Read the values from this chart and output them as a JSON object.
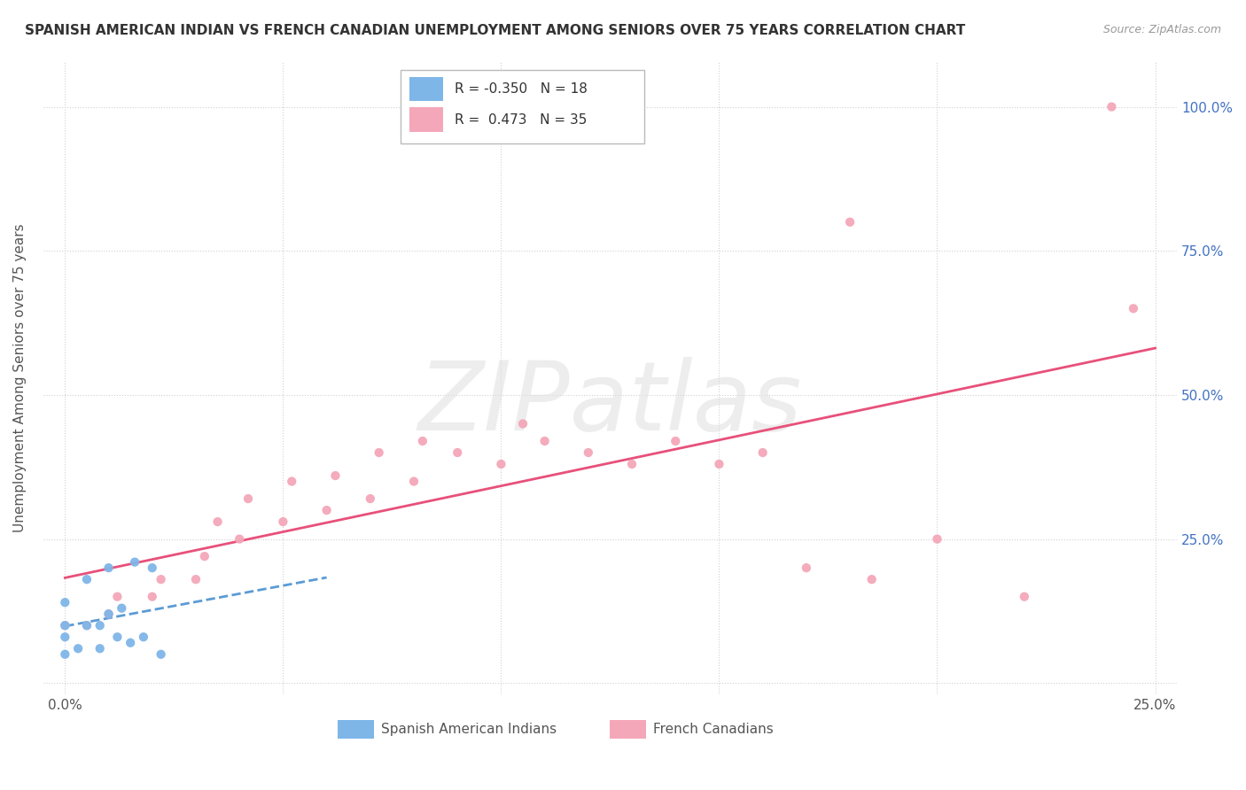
{
  "title": "SPANISH AMERICAN INDIAN VS FRENCH CANADIAN UNEMPLOYMENT AMONG SENIORS OVER 75 YEARS CORRELATION CHART",
  "source": "Source: ZipAtlas.com",
  "ylabel": "Unemployment Among Seniors over 75 years",
  "xlim": [
    -0.005,
    0.255
  ],
  "ylim": [
    -0.02,
    1.08
  ],
  "blue_R": -0.35,
  "blue_N": 18,
  "pink_R": 0.473,
  "pink_N": 35,
  "blue_color": "#7EB6E8",
  "pink_color": "#F4A7B9",
  "blue_line_color": "#5B9BD5",
  "pink_line_color": "#E8507A",
  "blue_points_x": [
    0.0,
    0.0,
    0.0,
    0.0,
    0.003,
    0.005,
    0.005,
    0.008,
    0.008,
    0.01,
    0.01,
    0.012,
    0.013,
    0.015,
    0.016,
    0.018,
    0.02,
    0.022
  ],
  "blue_points_y": [
    0.05,
    0.08,
    0.1,
    0.14,
    0.06,
    0.1,
    0.18,
    0.06,
    0.1,
    0.12,
    0.2,
    0.08,
    0.13,
    0.07,
    0.21,
    0.08,
    0.2,
    0.05
  ],
  "pink_points_x": [
    0.0,
    0.005,
    0.01,
    0.012,
    0.02,
    0.022,
    0.03,
    0.032,
    0.035,
    0.04,
    0.042,
    0.05,
    0.052,
    0.06,
    0.062,
    0.07,
    0.072,
    0.08,
    0.082,
    0.09,
    0.1,
    0.105,
    0.11,
    0.12,
    0.13,
    0.14,
    0.15,
    0.16,
    0.17,
    0.18,
    0.185,
    0.2,
    0.22,
    0.24,
    0.245
  ],
  "pink_points_y": [
    0.1,
    0.1,
    0.12,
    0.15,
    0.15,
    0.18,
    0.18,
    0.22,
    0.28,
    0.25,
    0.32,
    0.28,
    0.35,
    0.3,
    0.36,
    0.32,
    0.4,
    0.35,
    0.42,
    0.4,
    0.38,
    0.45,
    0.42,
    0.4,
    0.38,
    0.42,
    0.38,
    0.4,
    0.2,
    0.8,
    0.18,
    0.25,
    0.15,
    1.0,
    0.65
  ],
  "x_tick_positions": [
    0.0,
    0.05,
    0.1,
    0.15,
    0.2,
    0.25
  ],
  "x_tick_labels": [
    "0.0%",
    "",
    "",
    "",
    "",
    "25.0%"
  ],
  "y_tick_positions": [
    0.0,
    0.25,
    0.5,
    0.75,
    1.0
  ],
  "y_tick_labels": [
    "",
    "25.0%",
    "50.0%",
    "75.0%",
    "100.0%"
  ]
}
